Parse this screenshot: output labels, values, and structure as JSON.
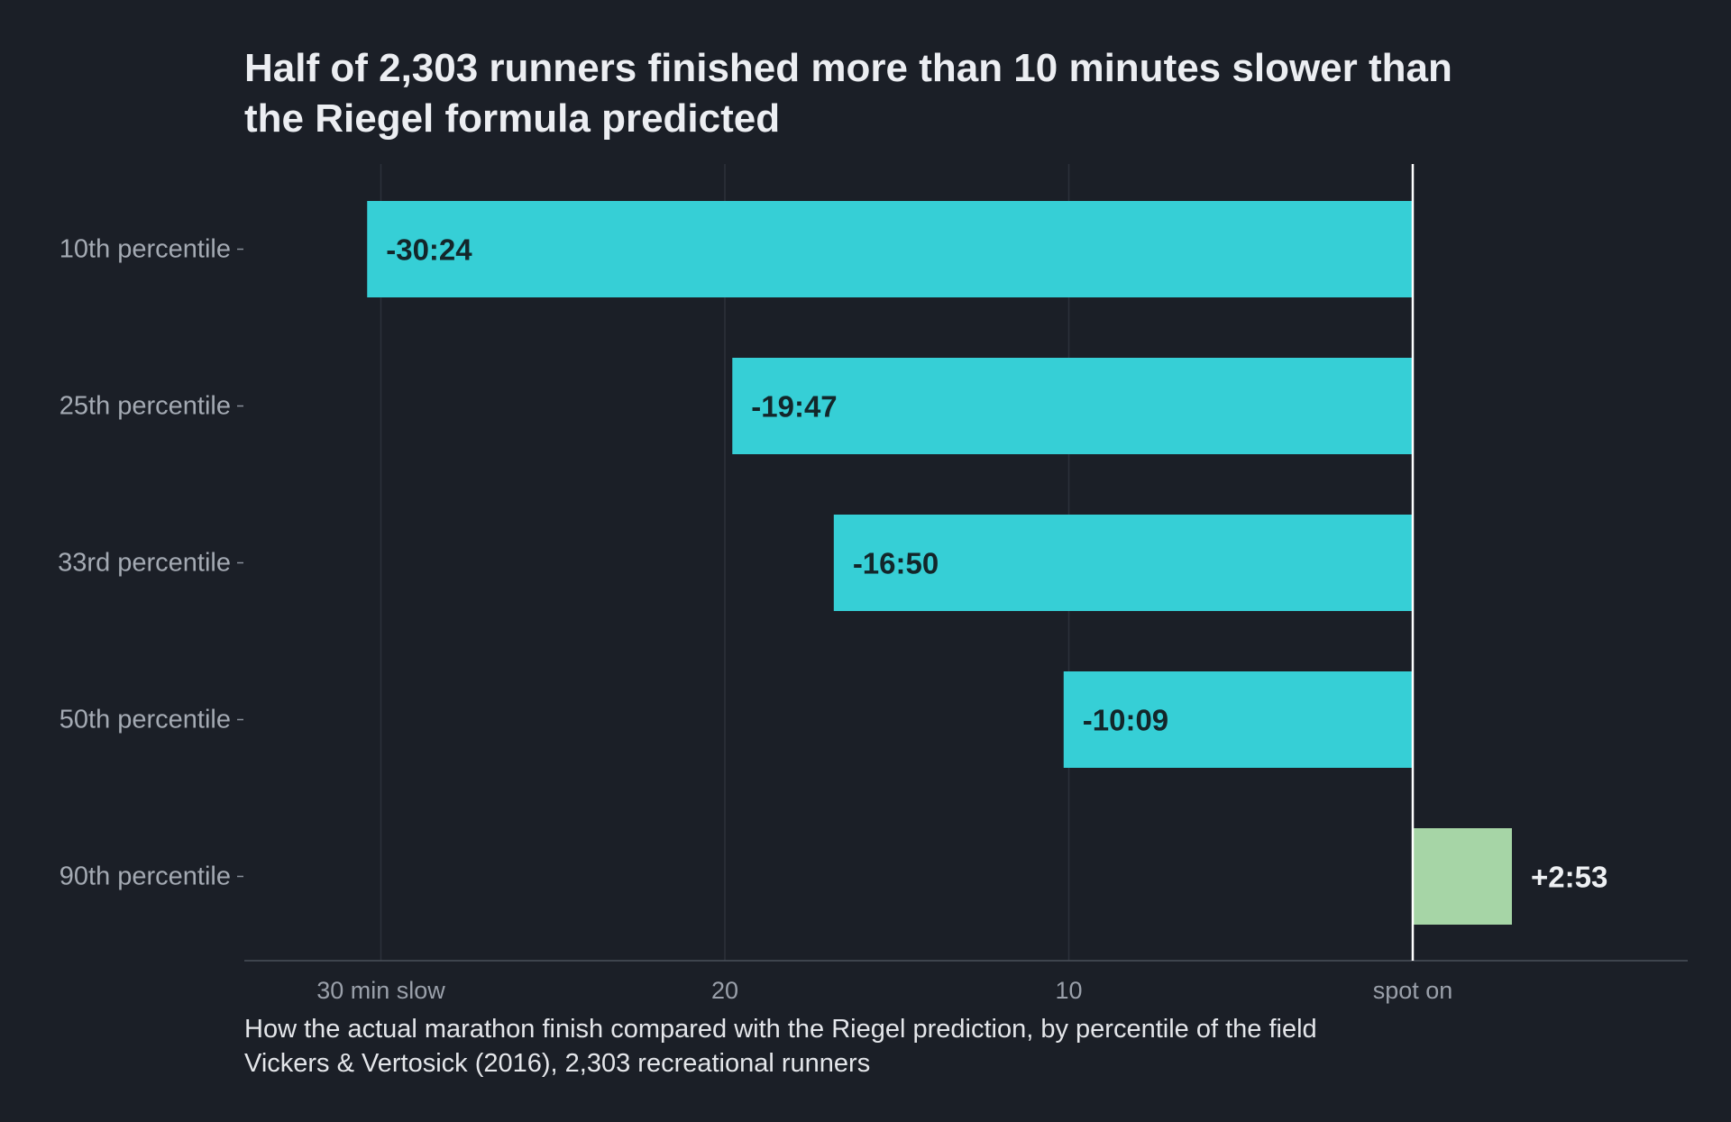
{
  "chart_data": {
    "type": "bar",
    "orientation": "horizontal",
    "title": "Half of 2,303 runners finished more than 10 minutes slower than the Riegel formula predicted",
    "subtitle": "How the actual marathon finish compared with the Riegel prediction, by percentile of the field",
    "source": "Vickers & Vertosick (2016), 2,303 recreational runners",
    "xlabel": "",
    "ylabel": "",
    "categories": [
      "10th percentile",
      "25th percentile",
      "33rd percentile",
      "50th percentile",
      "90th percentile"
    ],
    "values": [
      -30.4,
      -19.783,
      -16.833,
      -10.15,
      2.883
    ],
    "value_labels": [
      "-30:24",
      "-19:47",
      "-16:50",
      "-10:09",
      "+2:53"
    ],
    "xlim": [
      -34,
      8
    ],
    "x_ticks": [
      {
        "value": -30,
        "label": "30 min slow"
      },
      {
        "value": -20,
        "label": "20"
      },
      {
        "value": -10,
        "label": "10"
      },
      {
        "value": 0,
        "label": "spot on"
      }
    ],
    "grid": true,
    "legend": "none",
    "colors": {
      "negative": "#36cfd6",
      "positive": "#a6d5a6",
      "background": "#1b1f27",
      "grid": "#2c313a",
      "zero_line": "#ffffff",
      "tick_text": "#9aa0aa",
      "category_text": "#a4aab3"
    }
  }
}
